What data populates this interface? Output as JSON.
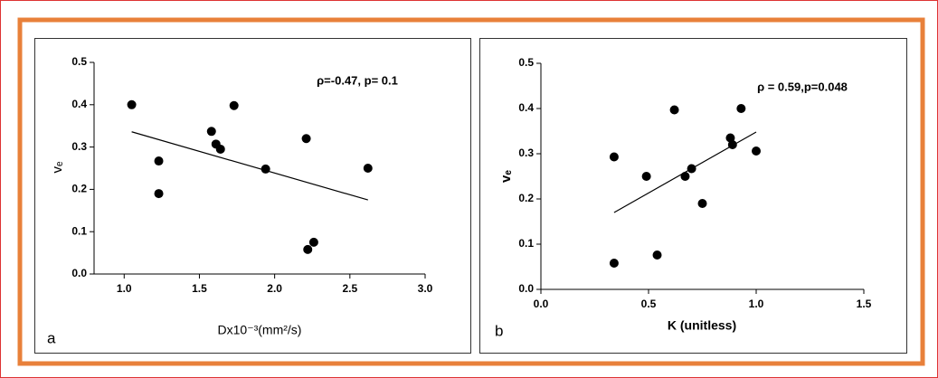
{
  "chart_data": [
    {
      "type": "scatter",
      "panel_label": "a",
      "x_label": "Dx10⁻³(mm²/s)",
      "y_label": "vₑ",
      "annotation": "ρ=-0.47, p= 0.1",
      "color": "#000000",
      "x": [
        1.05,
        1.23,
        1.23,
        1.58,
        1.61,
        1.64,
        1.73,
        1.94,
        2.21,
        2.22,
        2.26,
        2.62
      ],
      "values": [
        0.4,
        0.267,
        0.19,
        0.337,
        0.307,
        0.295,
        0.398,
        0.248,
        0.32,
        0.058,
        0.075,
        0.25
      ],
      "fit": {
        "x": [
          1.05,
          2.62
        ],
        "y": [
          0.336,
          0.175
        ]
      },
      "xlim": [
        0.8,
        3.0
      ],
      "xticks": [
        {
          "value": 1,
          "label": "1.0"
        },
        1.5,
        {
          "value": 2,
          "label": "2.0"
        },
        2.5,
        {
          "value": 3,
          "label": "3.0"
        }
      ],
      "ylim": [
        0,
        0.5
      ],
      "yticks": [
        {
          "value": 0,
          "label": "0.0"
        },
        0.1,
        0.2,
        0.3,
        0.4,
        0.5
      ]
    },
    {
      "type": "scatter",
      "panel_label": "b",
      "x_label": "K (unitless)",
      "y_label": "vₑ",
      "annotation": "ρ = 0.59,p=0.048",
      "color": "#000000",
      "x": [
        0.34,
        0.34,
        0.49,
        0.54,
        0.62,
        0.67,
        0.7,
        0.75,
        0.88,
        0.89,
        0.93,
        1.0
      ],
      "values": [
        0.293,
        0.058,
        0.25,
        0.076,
        0.397,
        0.25,
        0.267,
        0.19,
        0.335,
        0.32,
        0.4,
        0.306
      ],
      "fit": {
        "x": [
          0.34,
          1.0
        ],
        "y": [
          0.17,
          0.348
        ]
      },
      "xlim": [
        0,
        1.5
      ],
      "xticks": [
        {
          "value": 0,
          "label": "0.0"
        },
        0.5,
        {
          "value": 1,
          "label": "1.0"
        },
        1.5
      ],
      "ylim": [
        0,
        0.5
      ],
      "yticks": [
        {
          "value": 0,
          "label": "0.0"
        },
        0.1,
        0.2,
        0.3,
        0.4,
        0.5
      ]
    }
  ]
}
